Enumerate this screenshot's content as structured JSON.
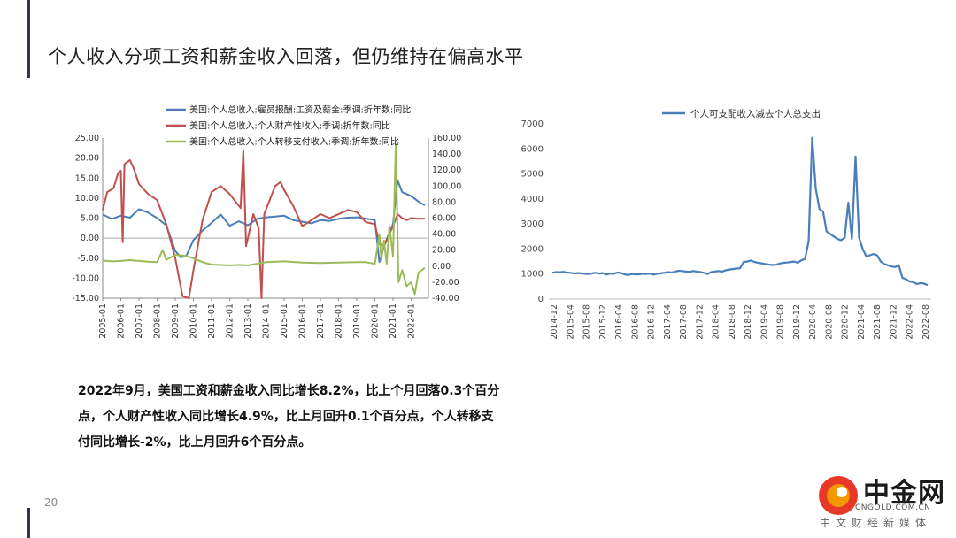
{
  "page": {
    "title": "个人收入分项工资和薪金收入回落，但仍维持在偏高水平",
    "page_number": "20",
    "description": "2022年9月，美国工资和薪金收入同比增长8.2%，比上个月回落0.3个百分点，个人财产性收入同比增长4.9%，比上月回升0.1个百分点，个人转移支付同比增长-2%，比上月回升6个百分点。",
    "accent_color": "#2f3555"
  },
  "logo": {
    "name": "中金网",
    "url": "CNGOLD.COM.CN",
    "tagline": "中文财经新媒体",
    "colors": {
      "red": "#e83828",
      "orange": "#f39800"
    }
  },
  "chart_data": [
    {
      "type": "line",
      "x_ticks": [
        "2005-01",
        "2006-01",
        "2007-01",
        "2008-01",
        "2009-01",
        "2010-01",
        "2011-01",
        "2012-01",
        "2013-01",
        "2014-01",
        "2015-01",
        "2016-01",
        "2017-01",
        "2018-01",
        "2019-01",
        "2020-01",
        "2021-01",
        "2022-01"
      ],
      "left_axis": {
        "ylim": [
          -15,
          25
        ],
        "ticks": [
          "25.00",
          "20.00",
          "15.00",
          "10.00",
          "5.00",
          "0.00",
          "-5.00",
          "-10.00",
          "-15.00"
        ]
      },
      "right_axis": {
        "ylim": [
          -40,
          160
        ],
        "ticks": [
          "160.00",
          "140.00",
          "120.00",
          "100.00",
          "80.00",
          "60.00",
          "40.00",
          "20.00",
          "0.00",
          "-20.00",
          "-40.00"
        ]
      },
      "legend_position": "top",
      "series": [
        {
          "name": "美国:个人总收入:雇员报酬:工资及薪金:季调:折年数:同比",
          "axis": "left",
          "color": "#4a7ebb",
          "points": [
            [
              2005.0,
              5.9
            ],
            [
              2005.5,
              4.8
            ],
            [
              2006.0,
              5.6
            ],
            [
              2006.5,
              5.1
            ],
            [
              2007.0,
              7.2
            ],
            [
              2007.5,
              6.4
            ],
            [
              2008.0,
              5.0
            ],
            [
              2008.5,
              3.2
            ],
            [
              2009.0,
              -3.2
            ],
            [
              2009.3,
              -4.8
            ],
            [
              2009.6,
              -4.5
            ],
            [
              2010.0,
              -0.5
            ],
            [
              2010.5,
              1.9
            ],
            [
              2011.0,
              3.8
            ],
            [
              2011.5,
              5.9
            ],
            [
              2012.0,
              3.1
            ],
            [
              2012.5,
              4.2
            ],
            [
              2013.0,
              3.2
            ],
            [
              2013.5,
              4.8
            ],
            [
              2014.0,
              5.2
            ],
            [
              2014.5,
              5.4
            ],
            [
              2015.0,
              5.6
            ],
            [
              2015.5,
              4.5
            ],
            [
              2016.0,
              4.1
            ],
            [
              2016.5,
              3.7
            ],
            [
              2017.0,
              4.5
            ],
            [
              2017.5,
              4.3
            ],
            [
              2018.0,
              4.8
            ],
            [
              2018.5,
              5.1
            ],
            [
              2019.0,
              5.2
            ],
            [
              2019.5,
              4.9
            ],
            [
              2020.0,
              4.5
            ],
            [
              2020.25,
              -6.0
            ],
            [
              2020.5,
              -2.0
            ],
            [
              2020.75,
              0.8
            ],
            [
              2021.0,
              3.5
            ],
            [
              2021.25,
              14.5
            ],
            [
              2021.5,
              11.5
            ],
            [
              2022.0,
              10.5
            ],
            [
              2022.5,
              8.8
            ],
            [
              2022.75,
              8.2
            ]
          ]
        },
        {
          "name": "美国:个人总收入:个人财产性收入:季调:折年数:同比",
          "axis": "left",
          "color": "#c0504d",
          "points": [
            [
              2005.0,
              7.0
            ],
            [
              2005.25,
              11.5
            ],
            [
              2005.6,
              12.5
            ],
            [
              2005.85,
              16.2
            ],
            [
              2006.0,
              16.8
            ],
            [
              2006.1,
              -1.0
            ],
            [
              2006.2,
              18.5
            ],
            [
              2006.5,
              19.5
            ],
            [
              2006.7,
              17.5
            ],
            [
              2007.0,
              13.5
            ],
            [
              2007.5,
              11.0
            ],
            [
              2008.0,
              9.5
            ],
            [
              2008.5,
              3.5
            ],
            [
              2009.0,
              -5.0
            ],
            [
              2009.4,
              -14.5
            ],
            [
              2009.75,
              -15.0
            ],
            [
              2010.0,
              -8.0
            ],
            [
              2010.5,
              4.5
            ],
            [
              2011.0,
              11.5
            ],
            [
              2011.5,
              13.0
            ],
            [
              2012.0,
              11.0
            ],
            [
              2012.6,
              7.5
            ],
            [
              2012.75,
              22.0
            ],
            [
              2012.9,
              -2.0
            ],
            [
              2013.3,
              6.0
            ],
            [
              2013.6,
              2.5
            ],
            [
              2013.75,
              -15.0
            ],
            [
              2013.9,
              6.0
            ],
            [
              2014.5,
              13.0
            ],
            [
              2014.8,
              14.0
            ],
            [
              2015.0,
              12.0
            ],
            [
              2015.5,
              8.0
            ],
            [
              2016.0,
              3.0
            ],
            [
              2016.5,
              4.5
            ],
            [
              2017.0,
              6.0
            ],
            [
              2017.5,
              5.0
            ],
            [
              2018.0,
              6.0
            ],
            [
              2018.5,
              7.0
            ],
            [
              2019.0,
              6.5
            ],
            [
              2019.5,
              4.0
            ],
            [
              2020.0,
              3.5
            ],
            [
              2020.25,
              -1.5
            ],
            [
              2020.5,
              -2.0
            ],
            [
              2021.0,
              3.0
            ],
            [
              2021.25,
              6.0
            ],
            [
              2021.5,
              5.0
            ],
            [
              2021.75,
              4.5
            ],
            [
              2022.0,
              5.0
            ],
            [
              2022.5,
              4.8
            ],
            [
              2022.75,
              4.9
            ]
          ]
        },
        {
          "name": "美国:个人总收入:个人转移支付收入:季调:折年数:同比",
          "axis": "right",
          "color": "#9bbb59",
          "points": [
            [
              2005.0,
              7.0
            ],
            [
              2005.5,
              6.0
            ],
            [
              2006.0,
              6.5
            ],
            [
              2006.5,
              7.5
            ],
            [
              2007.0,
              6.5
            ],
            [
              2007.5,
              5.5
            ],
            [
              2008.0,
              5.0
            ],
            [
              2008.3,
              20.0
            ],
            [
              2008.5,
              8.0
            ],
            [
              2009.0,
              14.0
            ],
            [
              2009.5,
              13.0
            ],
            [
              2010.0,
              10.0
            ],
            [
              2010.5,
              5.0
            ],
            [
              2011.0,
              2.0
            ],
            [
              2012.0,
              1.0
            ],
            [
              2012.5,
              1.5
            ],
            [
              2013.0,
              1.0
            ],
            [
              2013.5,
              3.0
            ],
            [
              2014.0,
              5.0
            ],
            [
              2015.0,
              6.0
            ],
            [
              2016.0,
              4.5
            ],
            [
              2017.0,
              4.0
            ],
            [
              2018.0,
              4.5
            ],
            [
              2019.0,
              5.0
            ],
            [
              2019.5,
              5.0
            ],
            [
              2020.0,
              3.0
            ],
            [
              2020.25,
              40.0
            ],
            [
              2020.35,
              8.0
            ],
            [
              2020.5,
              32.0
            ],
            [
              2020.65,
              3.0
            ],
            [
              2020.8,
              50.0
            ],
            [
              2021.0,
              12.0
            ],
            [
              2021.15,
              152.0
            ],
            [
              2021.3,
              -20.0
            ],
            [
              2021.5,
              -5.0
            ],
            [
              2021.75,
              -25.0
            ],
            [
              2022.0,
              -20.0
            ],
            [
              2022.2,
              -35.0
            ],
            [
              2022.4,
              -8.0
            ],
            [
              2022.6,
              -5.0
            ],
            [
              2022.75,
              -2.0
            ]
          ]
        }
      ]
    },
    {
      "type": "line",
      "x_ticks": [
        "2014-12",
        "2015-04",
        "2015-08",
        "2015-12",
        "2016-04",
        "2016-08",
        "2016-12",
        "2017-04",
        "2017-08",
        "2017-12",
        "2018-04",
        "2018-08",
        "2018-12",
        "2019-04",
        "2019-08",
        "2019-12",
        "2020-04",
        "2020-08",
        "2020-12",
        "2021-04",
        "2021-08",
        "2021-12",
        "2022-04",
        "2022-08"
      ],
      "y_ticks": [
        "7000",
        "6000",
        "5000",
        "4000",
        "3000",
        "2000",
        "1000",
        "0"
      ],
      "ylim": [
        0,
        7000
      ],
      "legend_position": "top",
      "series": [
        {
          "name": "个人可支配收入减去个人总支出",
          "color": "#4a7ebb",
          "values": [
            1050,
            1080,
            1070,
            1090,
            1060,
            1050,
            1020,
            1040,
            1030,
            1010,
            1000,
            1030,
            1050,
            1020,
            1040,
            980,
            1020,
            1010,
            1060,
            1040,
            990,
            960,
            1000,
            990,
            990,
            1010,
            1000,
            1020,
            980,
            1010,
            1030,
            1050,
            1080,
            1060,
            1100,
            1130,
            1120,
            1100,
            1090,
            1120,
            1100,
            1080,
            1050,
            1000,
            1080,
            1100,
            1120,
            1100,
            1150,
            1180,
            1200,
            1220,
            1230,
            1480,
            1500,
            1540,
            1480,
            1450,
            1430,
            1400,
            1380,
            1360,
            1370,
            1420,
            1450,
            1460,
            1480,
            1500,
            1450,
            1550,
            1600,
            2300,
            6450,
            4400,
            3600,
            3500,
            2700,
            2600,
            2500,
            2400,
            2350,
            2450,
            3850,
            2400,
            5700,
            2450,
            2000,
            1700,
            1750,
            1800,
            1750,
            1500,
            1400,
            1350,
            1300,
            1280,
            1350,
            850,
            800,
            700,
            680,
            600,
            640,
            620,
            560
          ]
        }
      ]
    }
  ]
}
